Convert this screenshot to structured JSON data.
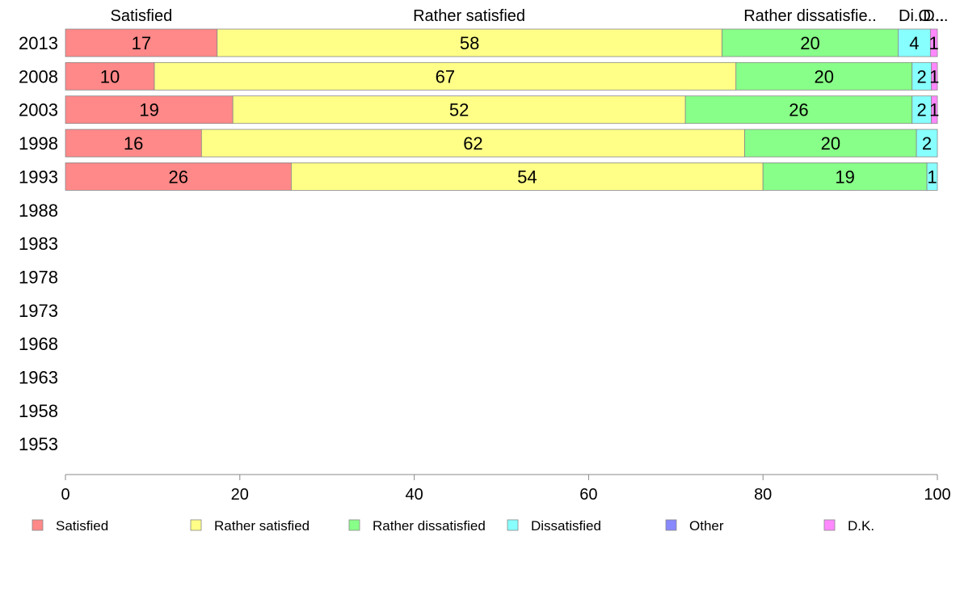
{
  "chart_data": {
    "type": "bar",
    "orientation": "horizontal",
    "stacked": true,
    "categories": [
      "2013",
      "2008",
      "2003",
      "1998",
      "1993",
      "1988",
      "1983",
      "1978",
      "1973",
      "1968",
      "1963",
      "1958",
      "1953"
    ],
    "series": [
      {
        "name": "Satisfied",
        "color": "#ff8888",
        "values": [
          17.4,
          10.2,
          19.2,
          15.6,
          25.9,
          null,
          null,
          null,
          null,
          null,
          null,
          null,
          null
        ],
        "labels": [
          "17",
          "10",
          "19",
          "16",
          "26",
          "",
          "",
          "",
          "",
          "",
          "",
          "",
          ""
        ]
      },
      {
        "name": "Rather satisfied",
        "color": "#ffff88",
        "values": [
          57.9,
          66.7,
          51.9,
          62.3,
          54.1,
          null,
          null,
          null,
          null,
          null,
          null,
          null,
          null
        ],
        "labels": [
          "58",
          "67",
          "52",
          "62",
          "54",
          "",
          "",
          "",
          "",
          "",
          "",
          "",
          ""
        ]
      },
      {
        "name": "Rather dissatisfied",
        "color": "#88ff88",
        "values": [
          20.2,
          20.2,
          26.0,
          19.7,
          18.8,
          null,
          null,
          null,
          null,
          null,
          null,
          null,
          null
        ],
        "labels": [
          "20",
          "20",
          "26",
          "20",
          "19",
          "",
          "",
          "",
          "",
          "",
          "",
          "",
          ""
        ]
      },
      {
        "name": "Dissatisfied",
        "color": "#88ffff",
        "values": [
          3.7,
          2.2,
          2.2,
          2.4,
          1.2,
          null,
          null,
          null,
          null,
          null,
          null,
          null,
          null
        ],
        "labels": [
          "4",
          "2",
          "2",
          "2",
          "1",
          "",
          "",
          "",
          "",
          "",
          "",
          "",
          ""
        ]
      },
      {
        "name": "Other",
        "color": "#8888ff",
        "values": [
          0,
          0,
          0,
          0,
          0,
          null,
          null,
          null,
          null,
          null,
          null,
          null,
          null
        ],
        "labels": [
          "",
          "",
          "",
          "",
          "",
          "",
          "",
          "",
          "",
          "",
          "",
          "",
          ""
        ]
      },
      {
        "name": "D.K.",
        "color": "#ff88ff",
        "values": [
          0.8,
          0.7,
          0.7,
          0,
          0,
          null,
          null,
          null,
          null,
          null,
          null,
          null,
          null
        ],
        "labels": [
          "1",
          "1",
          "1",
          "",
          "",
          "",
          "",
          "",
          "",
          "",
          "",
          "",
          ""
        ]
      }
    ],
    "top_labels": [
      {
        "text": "Satisfied",
        "x": 8.7
      },
      {
        "text": "Rather satisfied",
        "x": 46.3
      },
      {
        "text": "Rather dissatisfie..",
        "x": 85.4
      },
      {
        "text": "Di...",
        "x": 97.2
      },
      {
        "text": "O...",
        "x": 99.3
      },
      {
        "text": "D...",
        "x": 99.8
      }
    ],
    "xlim": [
      0,
      100
    ],
    "xticks": [
      "0",
      "20",
      "40",
      "60",
      "80",
      "100"
    ],
    "xlabel": "",
    "ylabel": "",
    "title": "",
    "grid": false,
    "legend": "bottom"
  }
}
